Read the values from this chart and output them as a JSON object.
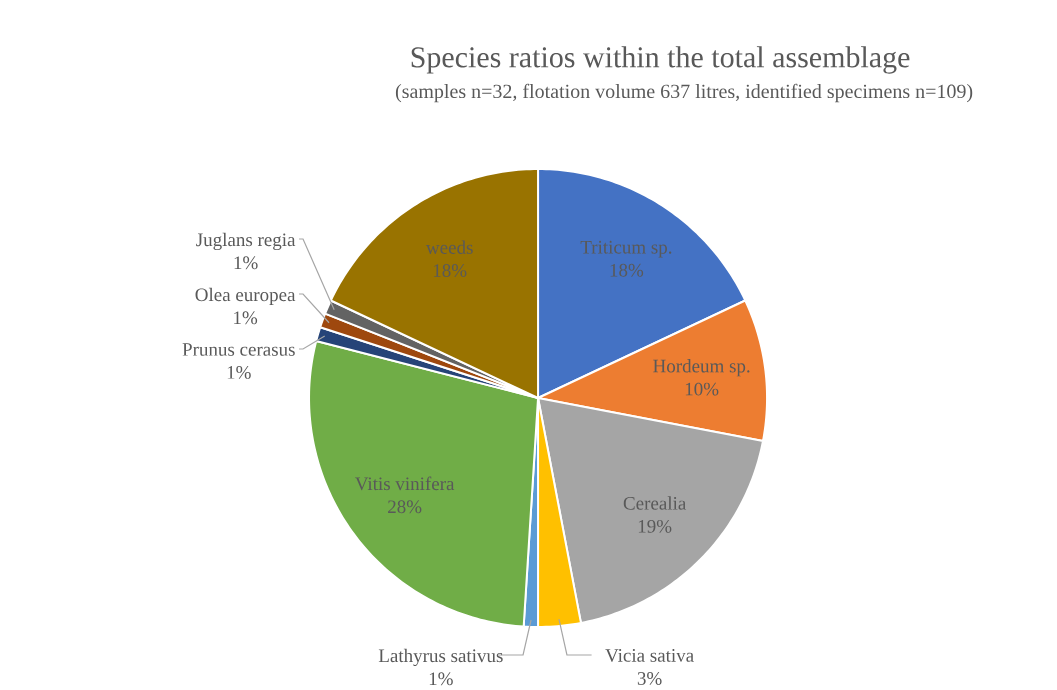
{
  "chart_data": {
    "type": "pie",
    "title": "Species ratios within the total assemblage",
    "subtitle": "(samples n=32, flotation volume 637 litres,  identified specimens n=109)",
    "categories": [
      "Triticum sp.",
      "Hordeum sp.",
      "Cerealia",
      "Vicia sativa",
      "Lathyrus sativus",
      "Vitis vinifera",
      "Prunus cerasus",
      "Olea europea",
      "Juglans regia",
      "weeds"
    ],
    "values": [
      18,
      10,
      19,
      3,
      1,
      28,
      1,
      1,
      1,
      18
    ],
    "value_labels": [
      "18%",
      "10%",
      "19%",
      "3%",
      "1%",
      "28%",
      "1%",
      "1%",
      "1%",
      "18%"
    ],
    "colors": [
      "#4472c4",
      "#ed7d31",
      "#a5a5a5",
      "#ffc000",
      "#5b9bd5",
      "#70ad47",
      "#264478",
      "#9e480e",
      "#636363",
      "#997300"
    ],
    "legend": false
  }
}
